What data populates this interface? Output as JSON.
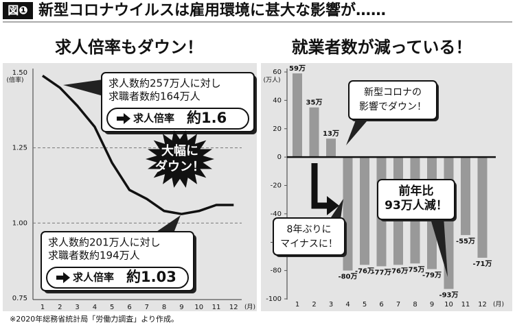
{
  "header": {
    "badge": "図❶",
    "title": "新型コロナウイルスは雇用環境に甚大な影響が……"
  },
  "chart_data": [
    {
      "type": "line",
      "title": "求人倍率もダウン！",
      "y_unit": "(倍率)",
      "x_unit": "(月)",
      "categories": [
        "1",
        "2",
        "3",
        "4",
        "5",
        "6",
        "7",
        "8",
        "9",
        "10",
        "11",
        "12"
      ],
      "values": [
        1.49,
        1.45,
        1.39,
        1.32,
        1.2,
        1.11,
        1.08,
        1.04,
        1.03,
        1.04,
        1.06,
        1.06
      ],
      "color": "#111111",
      "ylim": [
        0.75,
        1.5
      ],
      "yticks": [
        0.75,
        {
          "value": 1,
          "label": "1.00"
        },
        1.25,
        {
          "value": 1.5,
          "label": "1.50"
        }
      ],
      "grid": true,
      "annotations": [
        {
          "lines": [
            "求人数約257万人に対し",
            "求職者数約164万人"
          ],
          "label": "求人倍率",
          "value_text": "約1.6"
        },
        {
          "lines": [
            "求人数約201万人に対し",
            "求職者数約194万人"
          ],
          "label": "求人倍率",
          "value_text": "約1.03"
        }
      ],
      "burst": [
        "大幅に",
        "ダウン！"
      ]
    },
    {
      "type": "bar",
      "title": "就業者数が減っている！",
      "y_unit": "(万人)",
      "x_unit": "(月)",
      "categories": [
        "1",
        "2",
        "3",
        "4",
        "5",
        "6",
        "7",
        "8",
        "9",
        "10",
        "11",
        "12"
      ],
      "values": [
        59,
        35,
        13,
        -80,
        -76,
        -77,
        -76,
        -75,
        -79,
        -93,
        -55,
        -71
      ],
      "value_labels": [
        "59万",
        "35万",
        "13万",
        "-80万",
        "-76万",
        "-77万",
        "-76万",
        "-75万",
        "-79万",
        "-93万",
        "-55万",
        "-71万"
      ],
      "color": "#999999",
      "ylim": [
        -100,
        60
      ],
      "yticks": [
        -100,
        -80,
        -60,
        -40,
        -20,
        0,
        20,
        40,
        60
      ],
      "grid": false,
      "annotations": [
        [
          "新型コロナの",
          "影響でダウン！"
        ],
        [
          "8年ぶりに",
          "マイナスに！"
        ],
        [
          "前年比",
          "93万人減！"
        ]
      ]
    }
  ],
  "note": "※2020年総務省統計局「労働力調査」より作成。"
}
